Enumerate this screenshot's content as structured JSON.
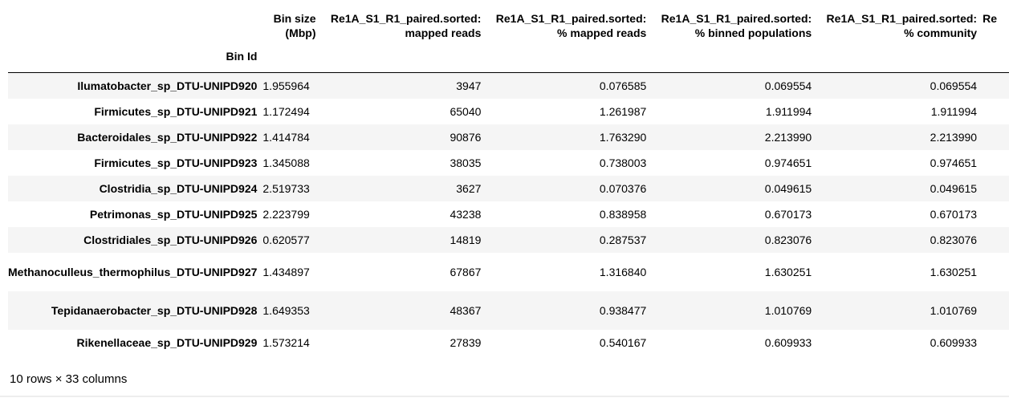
{
  "table": {
    "index_name": "Bin Id",
    "columns": [
      "Bin size (Mbp)",
      "Re1A_S1_R1_paired.sorted: mapped reads",
      "Re1A_S1_R1_paired.sorted: % mapped reads",
      "Re1A_S1_R1_paired.sorted: % binned populations",
      "Re1A_S1_R1_paired.sorted: % community",
      "Re"
    ],
    "columns_split": [
      [
        "Bin size",
        "(Mbp)"
      ],
      [
        "Re1A_S1_R1_paired.sorted:",
        "mapped reads"
      ],
      [
        "Re1A_S1_R1_paired.sorted:",
        "% mapped reads"
      ],
      [
        "Re1A_S1_R1_paired.sorted:",
        "% binned populations"
      ],
      [
        "Re1A_S1_R1_paired.sorted:",
        "% community"
      ],
      [
        "Re",
        ""
      ]
    ],
    "rows": [
      {
        "id": "Ilumatobacter_sp_DTU-UNIPD920",
        "cells": [
          "1.955964",
          "3947",
          "0.076585",
          "0.069554",
          "0.069554"
        ]
      },
      {
        "id": "Firmicutes_sp_DTU-UNIPD921",
        "cells": [
          "1.172494",
          "65040",
          "1.261987",
          "1.911994",
          "1.911994"
        ]
      },
      {
        "id": "Bacteroidales_sp_DTU-UNIPD922",
        "cells": [
          "1.414784",
          "90876",
          "1.763290",
          "2.213990",
          "2.213990"
        ]
      },
      {
        "id": "Firmicutes_sp_DTU-UNIPD923",
        "cells": [
          "1.345088",
          "38035",
          "0.738003",
          "0.974651",
          "0.974651"
        ]
      },
      {
        "id": "Clostridia_sp_DTU-UNIPD924",
        "cells": [
          "2.519733",
          "3627",
          "0.070376",
          "0.049615",
          "0.049615"
        ]
      },
      {
        "id": "Petrimonas_sp_DTU-UNIPD925",
        "cells": [
          "2.223799",
          "43238",
          "0.838958",
          "0.670173",
          "0.670173"
        ]
      },
      {
        "id": "Clostridiales_sp_DTU-UNIPD926",
        "cells": [
          "0.620577",
          "14819",
          "0.287537",
          "0.823076",
          "0.823076"
        ]
      },
      {
        "id": "Methanoculleus_thermophilus_DTU-UNIPD927",
        "cells": [
          "1.434897",
          "67867",
          "1.316840",
          "1.630251",
          "1.630251"
        ]
      },
      {
        "id": "Tepidanaerobacter_sp_DTU-UNIPD928",
        "cells": [
          "1.649353",
          "48367",
          "0.938477",
          "1.010769",
          "1.010769"
        ]
      },
      {
        "id": "Rikenellaceae_sp_DTU-UNIPD929",
        "cells": [
          "1.573214",
          "27839",
          "0.540167",
          "0.609933",
          "0.609933"
        ]
      }
    ]
  },
  "footer": {
    "shape_text": "10 rows × 33 columns"
  }
}
